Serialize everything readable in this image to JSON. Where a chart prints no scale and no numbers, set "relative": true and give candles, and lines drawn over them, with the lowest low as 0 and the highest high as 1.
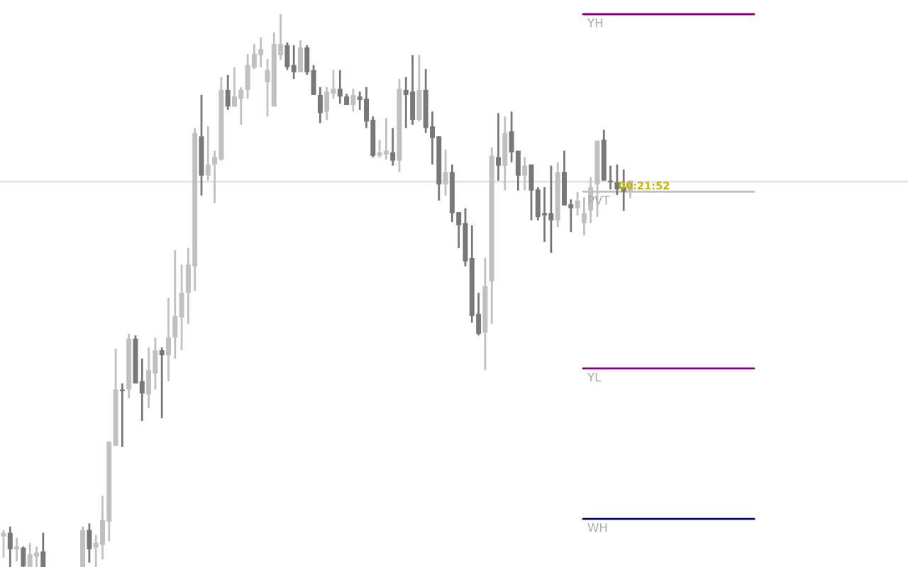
{
  "chart_data": {
    "type": "candlestick",
    "relative": true,
    "grid": false,
    "legend": false,
    "categories": [
      null,
      null,
      null,
      null,
      null,
      null,
      null,
      null,
      null,
      null,
      null,
      null,
      null,
      null,
      null,
      null,
      null,
      null,
      null,
      null,
      null,
      null,
      null,
      null,
      null,
      null,
      null,
      null,
      null,
      null,
      null,
      null,
      null,
      null,
      null,
      null,
      null,
      null,
      null,
      null,
      null,
      null,
      null,
      null,
      null,
      null,
      null,
      null,
      null,
      null,
      null,
      null,
      null,
      null,
      null,
      null,
      null,
      null,
      null,
      null,
      null,
      null,
      null,
      null,
      null,
      null,
      null,
      null,
      null,
      null,
      null,
      null,
      null,
      null,
      null,
      null,
      null,
      null,
      null,
      null,
      null,
      null,
      null,
      null,
      null,
      null,
      null,
      null,
      null,
      null,
      null,
      null,
      null,
      null,
      null,
      null
    ],
    "ohlc": [
      [
        0.055,
        0.067,
        0.017,
        0.062
      ],
      [
        0.062,
        0.073,
        0,
        0.032
      ],
      [
        0.032,
        0.053,
        0.01,
        0.037
      ],
      [
        0.035,
        0.037,
        0,
        0.001
      ],
      [
        0,
        0.044,
        0,
        0.023
      ],
      [
        0.019,
        0.037,
        0,
        0.026
      ],
      [
        0.028,
        0.062,
        0,
        0
      ],
      null,
      null,
      null,
      null,
      null,
      [
        0,
        0.073,
        0,
        0.067
      ],
      [
        0.067,
        0.079,
        0.008,
        0.032
      ],
      [
        0.035,
        0.058,
        0,
        0.044
      ],
      [
        0.04,
        0.129,
        0.014,
        0.085
      ],
      [
        0.082,
        0.228,
        0.046,
        0.226
      ],
      [
        0.219,
        0.395,
        0.219,
        0.321
      ],
      [
        0.321,
        0.332,
        0.217,
        0.318
      ],
      [
        0.321,
        0.422,
        0.305,
        0.413
      ],
      [
        0.413,
        0.419,
        0.332,
        0.332
      ],
      [
        0.336,
        0.377,
        0.264,
        0.314
      ],
      [
        0.312,
        0.397,
        0.287,
        0.356
      ],
      [
        0.35,
        0.415,
        0.321,
        0.392
      ],
      [
        0.392,
        0.397,
        0.269,
        0.383
      ],
      [
        0.383,
        0.487,
        0.336,
        0.415
      ],
      [
        0.415,
        0.573,
        0.377,
        0.454
      ],
      [
        0.451,
        0.547,
        0.392,
        0.496
      ],
      [
        0.496,
        0.577,
        0.44,
        0.547
      ],
      [
        0.544,
        0.794,
        0.499,
        0.785
      ],
      [
        0.779,
        0.854,
        0.672,
        0.708
      ],
      [
        0.708,
        0.797,
        0.699,
        0.728
      ],
      [
        0.728,
        0.753,
        0.658,
        0.741
      ],
      [
        0.737,
        0.886,
        0.735,
        0.863
      ],
      [
        0.863,
        0.89,
        0.827,
        0.833
      ],
      [
        0.833,
        0.904,
        0.833,
        0.851
      ],
      [
        0.847,
        0.868,
        0.8,
        0.863
      ],
      [
        0.863,
        0.928,
        0.847,
        0.908
      ],
      [
        0.903,
        0.946,
        0.901,
        0.928
      ],
      [
        0.926,
        0.958,
        0.904,
        0.937
      ],
      [
        0.877,
        0.919,
        0.815,
        0.899
      ],
      [
        0.833,
        0.967,
        0.833,
        0.946
      ],
      [
        0.926,
        1,
        0.917,
        0.946
      ],
      [
        0.944,
        0.949,
        0.899,
        0.904
      ],
      [
        0.908,
        0.944,
        0.883,
        0.895
      ],
      [
        0.895,
        0.953,
        0.895,
        0.94
      ],
      [
        0.94,
        0.944,
        0.89,
        0.895
      ],
      [
        0.899,
        0.908,
        0.854,
        0.854
      ],
      [
        0.854,
        0.868,
        0.803,
        0.821
      ],
      [
        0.824,
        0.868,
        0.809,
        0.86
      ],
      [
        0.856,
        0.899,
        0.847,
        0.865
      ],
      [
        0.865,
        0.899,
        0.838,
        0.851
      ],
      [
        0.851,
        0.856,
        0.836,
        0.836
      ],
      [
        0.836,
        0.865,
        0.824,
        0.854
      ],
      [
        0.851,
        0.86,
        0.827,
        0.845
      ],
      [
        0.847,
        0.868,
        0.794,
        0.806
      ],
      [
        0.809,
        0.815,
        0.741,
        0.744
      ],
      [
        0.744,
        0.773,
        0.741,
        0.75
      ],
      [
        0.746,
        0.812,
        0.737,
        0.753
      ],
      [
        0.75,
        0.794,
        0.726,
        0.735
      ],
      [
        0.735,
        0.883,
        0.714,
        0.865
      ],
      [
        0.863,
        0.886,
        0.794,
        0.854
      ],
      [
        0.86,
        0.926,
        0.8,
        0.809
      ],
      [
        0.809,
        0.926,
        0.806,
        0.863
      ],
      [
        0.863,
        0.901,
        0.785,
        0.794
      ],
      [
        0.797,
        0.824,
        0.728,
        0.776
      ],
      [
        0.779,
        0.779,
        0.663,
        0.692
      ],
      [
        0.692,
        0.755,
        0.672,
        0.714
      ],
      [
        0.714,
        0.728,
        0.624,
        0.64
      ],
      [
        0.642,
        0.642,
        0.577,
        0.618
      ],
      [
        0.622,
        0.649,
        0.544,
        0.553
      ],
      [
        0.559,
        0.618,
        0.442,
        0.454
      ],
      [
        0.458,
        0.496,
        0.419,
        0.422
      ],
      [
        0.424,
        0.559,
        0.356,
        0.508
      ],
      [
        0.517,
        0.759,
        0.44,
        0.744
      ],
      [
        0.741,
        0.821,
        0.699,
        0.726
      ],
      [
        0.726,
        0.815,
        0.681,
        0.785
      ],
      [
        0.788,
        0.824,
        0.732,
        0.75
      ],
      [
        0.753,
        0.753,
        0.681,
        0.708
      ],
      [
        0.708,
        0.741,
        0.681,
        0.726
      ],
      [
        0.728,
        0.728,
        0.627,
        0.681
      ],
      [
        0.683,
        0.687,
        0.627,
        0.633
      ],
      [
        0.64,
        0.687,
        0.588,
        0.636
      ],
      [
        0.64,
        0.726,
        0.568,
        0.627
      ],
      [
        0.627,
        0.732,
        0.615,
        0.714
      ],
      [
        0.714,
        0.753,
        0.654,
        0.654
      ],
      [
        0.656,
        0.665,
        0.606,
        0.649
      ],
      [
        0.649,
        0.678,
        0.636,
        0.663
      ],
      [
        0.622,
        0.669,
        0.6,
        0.64
      ],
      [
        0.645,
        0.705,
        0.622,
        0.687
      ],
      [
        0.692,
        0.771,
        0.633,
        0.771
      ],
      [
        0.773,
        0.791,
        0.699,
        0.699
      ],
      [
        0.699,
        0.726,
        0.683,
        0.696
      ],
      [
        0.696,
        0.728,
        0.673,
        0.683
      ],
      [
        0.687,
        0.719,
        0.644,
        0.679
      ],
      [
        0.679,
        0.699,
        0.667,
        0.699
      ]
    ],
    "ref_lines": [
      {
        "axis": "y",
        "value": 1.0,
        "label": "YH",
        "color": "#800080",
        "line_style": "solid"
      },
      {
        "axis": "y",
        "value": 0.359,
        "label": "YL",
        "color": "#800080",
        "line_style": "solid"
      },
      {
        "axis": "y",
        "value": 0.087,
        "label": "WH",
        "color": "#000080",
        "line_style": "solid"
      },
      {
        "axis": "y",
        "value": 0.679,
        "label": "PVT",
        "color": "#c0c0c0",
        "line_style": "solid"
      },
      {
        "axis": "y",
        "value": 0.697,
        "label": null,
        "color": "#dddddd",
        "line_style": "solid"
      }
    ],
    "annotations": [
      "00:21:52"
    ]
  }
}
